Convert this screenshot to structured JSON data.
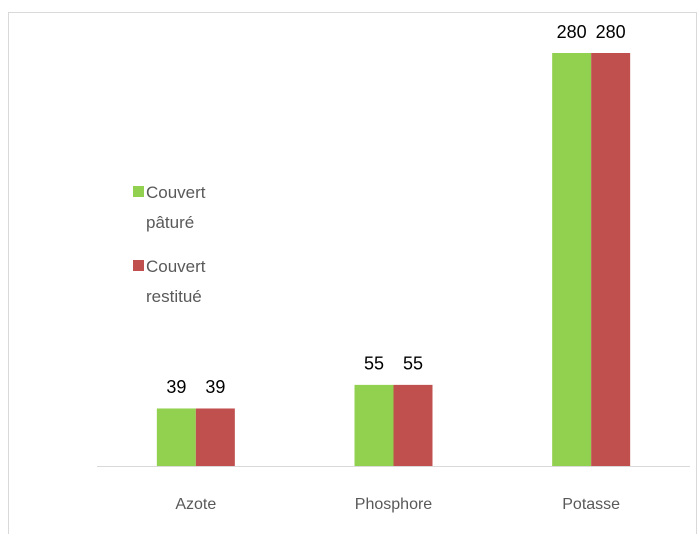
{
  "chart_data": {
    "type": "bar",
    "categories": [
      "Azote",
      "Phosphore",
      "Potasse"
    ],
    "series": [
      {
        "name": "Couvert pâturé",
        "color": "#92d050",
        "values": [
          39,
          55,
          280
        ]
      },
      {
        "name": "Couvert restitué",
        "color": "#c0504d",
        "values": [
          39,
          55,
          280
        ]
      }
    ],
    "ylim": [
      0,
      280
    ]
  }
}
